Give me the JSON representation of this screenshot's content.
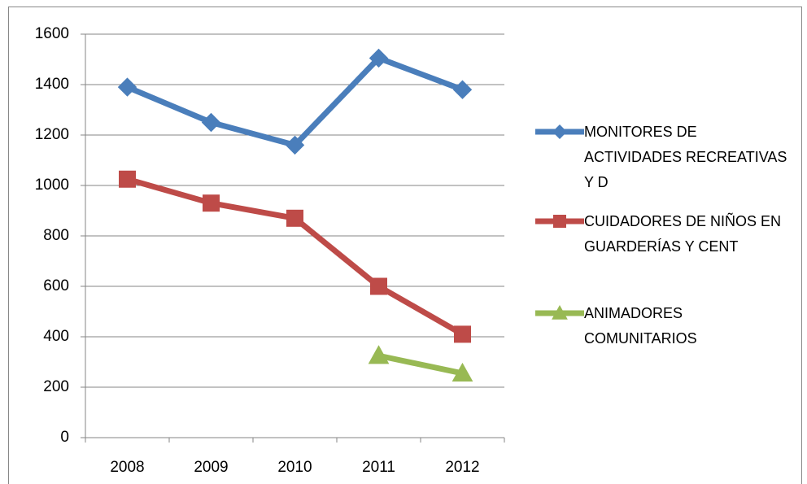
{
  "chart_data": {
    "type": "line",
    "categories": [
      "2008",
      "2009",
      "2010",
      "2011",
      "2012"
    ],
    "series": [
      {
        "name": "MONITORES DE ACTIVIDADES RECREATIVAS Y D",
        "color": "#4a7ebb",
        "marker": "diamond",
        "values": [
          1390,
          1250,
          1160,
          1505,
          1380
        ]
      },
      {
        "name": "CUIDADORES DE NIÑOS EN GUARDERÍAS Y CENT",
        "color": "#be4b48",
        "marker": "square",
        "values": [
          1025,
          930,
          870,
          600,
          410
        ]
      },
      {
        "name": "ANIMADORES COMUNITARIOS",
        "color": "#98b954",
        "marker": "triangle",
        "values": [
          null,
          null,
          null,
          325,
          255
        ]
      }
    ],
    "ylim": [
      0,
      1600
    ],
    "yticks": [
      0,
      200,
      400,
      600,
      800,
      1000,
      1200,
      1400,
      1600
    ],
    "grid": true,
    "legend": "right"
  }
}
